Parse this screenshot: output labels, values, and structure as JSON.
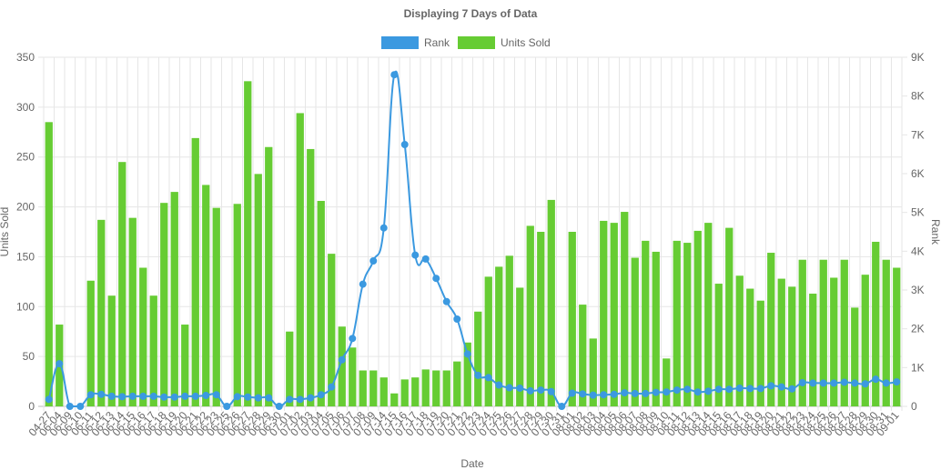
{
  "chart_data": {
    "type": "bar",
    "title": "Displaying 7 Days of Data",
    "xlabel": "Date",
    "ylabel": "Units Sold",
    "y2label": "Rank",
    "ylim": [
      0,
      350
    ],
    "y2lim": [
      0,
      9000
    ],
    "yticks": [
      "0",
      "50",
      "100",
      "150",
      "200",
      "250",
      "300",
      "350"
    ],
    "y2ticks": [
      "0",
      "1K",
      "2K",
      "3K",
      "4K",
      "5K",
      "6K",
      "7K",
      "8K",
      "9K"
    ],
    "grid": true,
    "legend_position": "top-center",
    "categories": [
      "04-27",
      "06-04",
      "06-09",
      "06-10",
      "06-11",
      "06-12",
      "06-13",
      "06-14",
      "06-15",
      "06-16",
      "06-17",
      "06-18",
      "06-19",
      "06-20",
      "06-21",
      "06-22",
      "06-23",
      "06-25",
      "06-26",
      "06-27",
      "06-28",
      "06-29",
      "06-30",
      "07-01",
      "07-02",
      "07-03",
      "07-04",
      "07-05",
      "07-06",
      "07-07",
      "07-08",
      "07-09",
      "07-14",
      "07-15",
      "07-16",
      "07-17",
      "07-18",
      "07-19",
      "07-20",
      "07-21",
      "07-22",
      "07-23",
      "07-24",
      "07-25",
      "07-26",
      "07-27",
      "07-28",
      "07-29",
      "07-30",
      "07-31",
      "08-01",
      "08-02",
      "08-03",
      "08-04",
      "08-05",
      "08-06",
      "08-07",
      "08-08",
      "08-09",
      "08-10",
      "08-11",
      "08-12",
      "08-13",
      "08-14",
      "08-15",
      "08-16",
      "08-17",
      "08-18",
      "08-19",
      "08-20",
      "08-21",
      "08-22",
      "08-23",
      "08-24",
      "08-25",
      "08-26",
      "08-27",
      "08-28",
      "08-29",
      "08-30",
      "08-31",
      "09-01"
    ],
    "series": [
      {
        "name": "Units Sold",
        "type": "bar",
        "axis": "left",
        "color": "#66cc33",
        "values": [
          285,
          82,
          0,
          0,
          126,
          187,
          111,
          245,
          189,
          139,
          111,
          204,
          215,
          82,
          269,
          222,
          199,
          0,
          203,
          326,
          233,
          260,
          0,
          75,
          294,
          258,
          206,
          153,
          80,
          59,
          36,
          36,
          29,
          13,
          27,
          29,
          37,
          36,
          36,
          45,
          64,
          95,
          130,
          140,
          151,
          119,
          181,
          175,
          207,
          0,
          175,
          102,
          68,
          186,
          184,
          195,
          149,
          166,
          155,
          48,
          166,
          164,
          176,
          184,
          123,
          179,
          131,
          118,
          106,
          154,
          128,
          120,
          147,
          113,
          147,
          129,
          147,
          99,
          132,
          165,
          147,
          139
        ]
      },
      {
        "name": "Rank",
        "type": "line",
        "axis": "right",
        "color": "#3b99e0",
        "values": [
          180,
          1100,
          0,
          0,
          300,
          310,
          260,
          250,
          260,
          260,
          260,
          240,
          240,
          260,
          260,
          280,
          300,
          0,
          250,
          240,
          220,
          220,
          0,
          180,
          180,
          220,
          300,
          500,
          1200,
          1750,
          3150,
          3750,
          4600,
          8550,
          6750,
          3900,
          3800,
          3300,
          2700,
          2250,
          1350,
          800,
          740,
          550,
          480,
          470,
          400,
          420,
          380,
          0,
          340,
          320,
          290,
          300,
          310,
          350,
          330,
          330,
          360,
          370,
          420,
          440,
          370,
          390,
          440,
          440,
          470,
          460,
          460,
          530,
          500,
          450,
          610,
          600,
          600,
          600,
          620,
          600,
          580,
          700,
          600,
          630
        ]
      }
    ]
  }
}
